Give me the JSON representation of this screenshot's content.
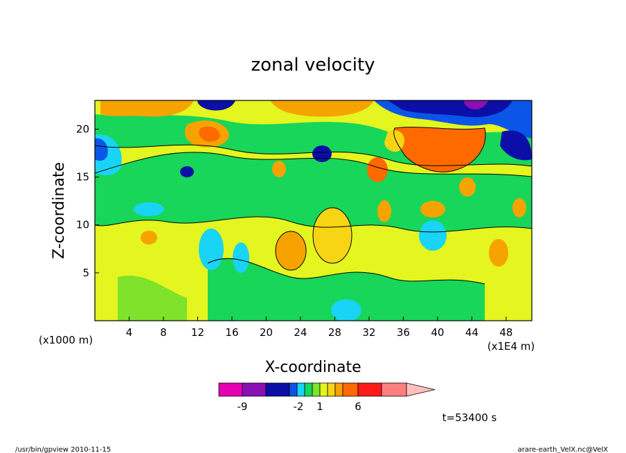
{
  "chart_data": {
    "type": "heatmap",
    "title": "zonal velocity",
    "xlabel": "X-coordinate",
    "ylabel": "Z-coordinate",
    "x_unit_note": "(x1E4 m)",
    "y_unit_note": "(x1000 m)",
    "x_ticks": [
      "4",
      "8",
      "12",
      "16",
      "20",
      "24",
      "28",
      "32",
      "36",
      "40",
      "44",
      "48"
    ],
    "y_ticks": [
      "5",
      "10",
      "15",
      "20"
    ],
    "xlim": [
      0,
      51
    ],
    "ylim": [
      0,
      23
    ],
    "colorbar": {
      "labels": [
        "-9",
        "-2",
        "1",
        "6"
      ],
      "colors": [
        "#e600b4",
        "#8a0fb5",
        "#0b0fa8",
        "#0b55e8",
        "#19d4f5",
        "#17d65a",
        "#7ee32a",
        "#e4f51f",
        "#f7d515",
        "#f6a300",
        "#ff6a00",
        "#ff1a1a",
        "#ff7f7f",
        "#ffbfbf"
      ]
    },
    "time_label": "t=53400 s",
    "series_colors": {
      "deep_blue": "#0b0fa8",
      "mid_blue": "#0b55e8",
      "cyan": "#19d4f5",
      "green": "#17d65a",
      "light_green": "#7ee32a",
      "yellow": "#e4f51f",
      "gold": "#f7d515",
      "orange": "#f6a300",
      "dark_orange": "#ff6a00",
      "purple": "#8a0fb5"
    }
  },
  "footer": {
    "left": "/usr/bin/gpview  2010-11-15",
    "right": "arare-earth_VelX.nc@VelX"
  }
}
